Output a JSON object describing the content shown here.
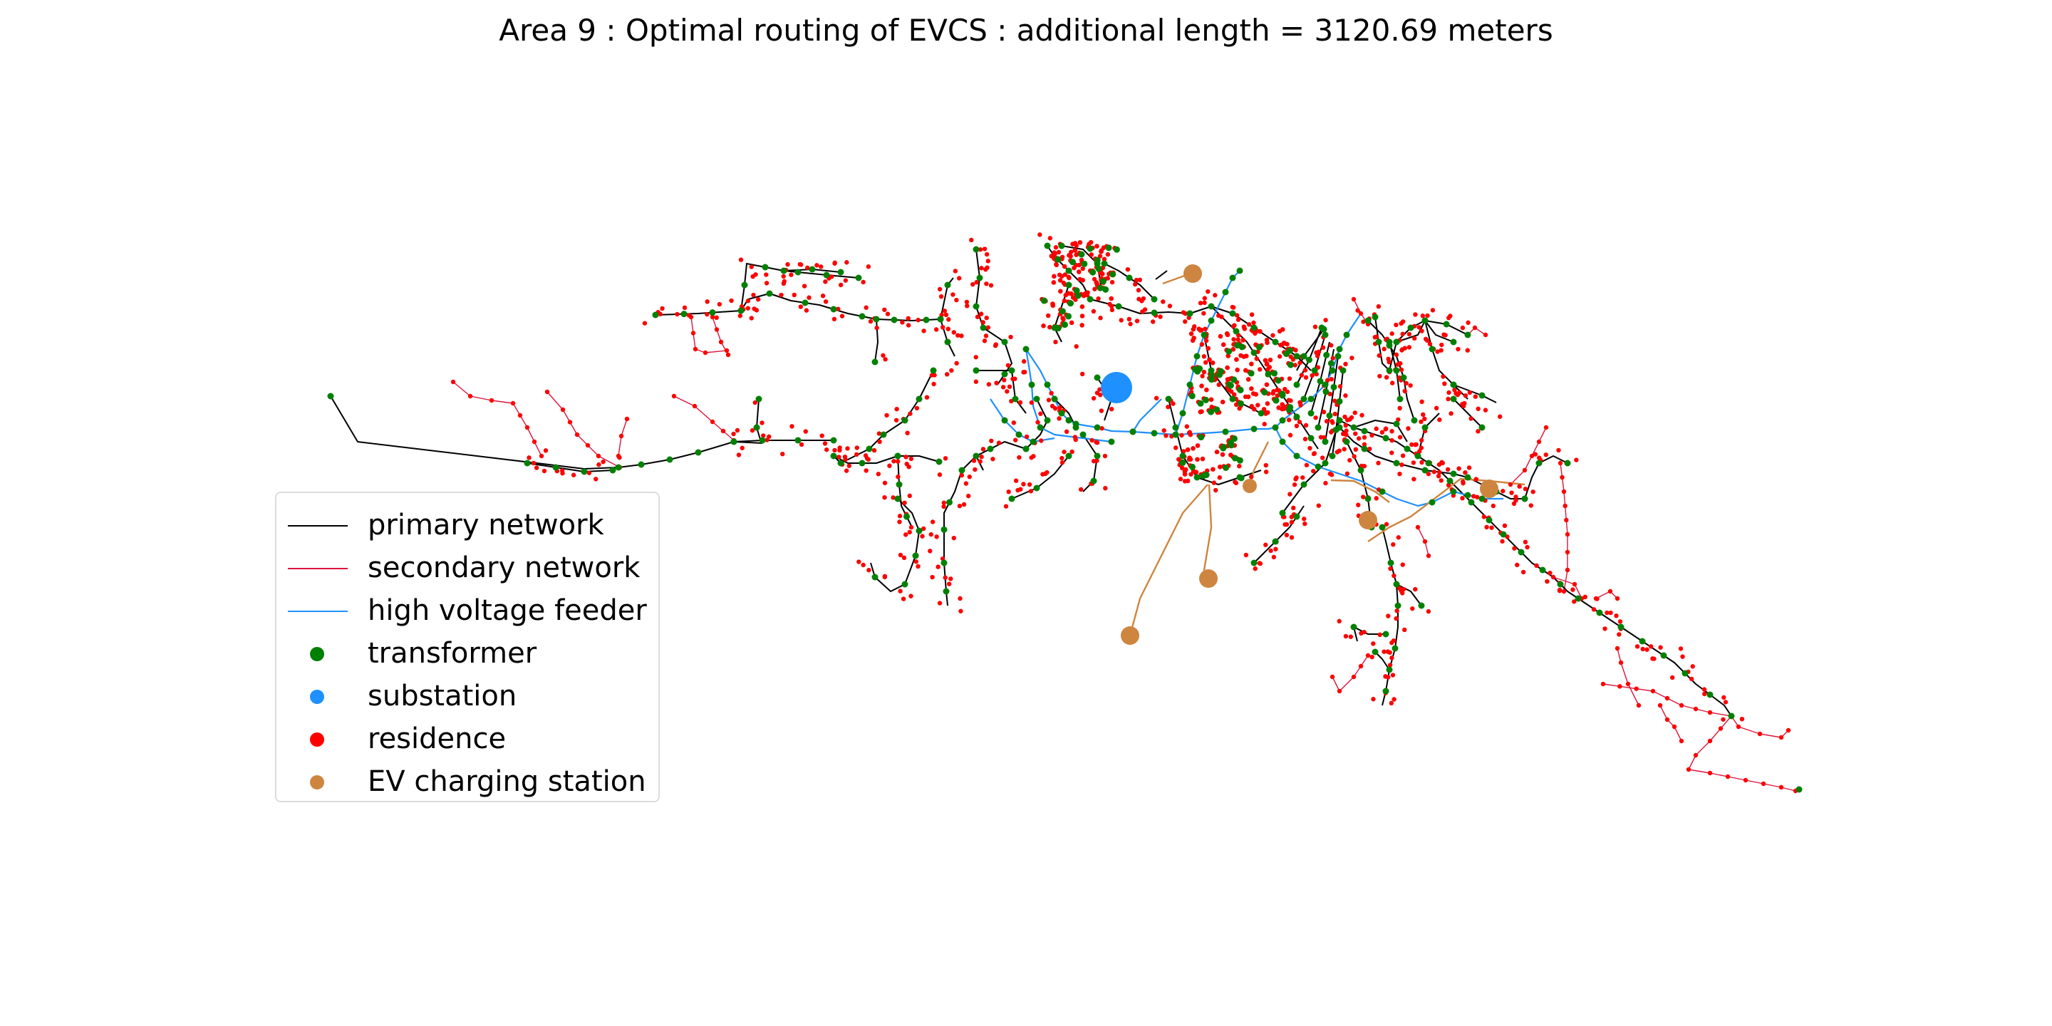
{
  "title": "Area 9 : Optimal routing of EVCS : additional length =  3120.69 meters",
  "colors": {
    "primary": "#000000",
    "secondary": "#dc143c",
    "hv": "#1e90ff",
    "transformer": "#008000",
    "substation": "#1e90ff",
    "residence": "#ff0000",
    "evcs": "#cd853f"
  },
  "legend": [
    {
      "label": "primary network",
      "kind": "line",
      "color": "#000000"
    },
    {
      "label": "secondary network",
      "kind": "line",
      "color": "#dc143c"
    },
    {
      "label": "high voltage feeder",
      "kind": "line",
      "color": "#1e90ff"
    },
    {
      "label": "transformer",
      "kind": "dot",
      "color": "#008000"
    },
    {
      "label": "substation",
      "kind": "dot",
      "color": "#1e90ff"
    },
    {
      "label": "residence",
      "kind": "dot",
      "color": "#ff0000"
    },
    {
      "label": "EV charging station",
      "kind": "dot",
      "color": "#cd853f"
    }
  ]
}
